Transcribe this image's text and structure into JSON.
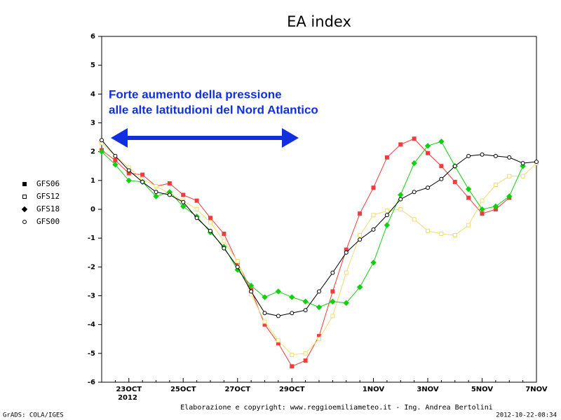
{
  "chart_data": {
    "type": "line",
    "title": "EA index",
    "categories": [
      null,
      null,
      "23OCT",
      null,
      null,
      null,
      "25OCT",
      null,
      null,
      null,
      "27OCT",
      null,
      null,
      null,
      "29OCT",
      null,
      null,
      null,
      null,
      null,
      "1NOV",
      null,
      null,
      null,
      "3NOV",
      null,
      null,
      null,
      "5NOV",
      null,
      null,
      null,
      "7NOV"
    ],
    "year_label": "2012",
    "ylim": [
      -6,
      6
    ],
    "yticks": [
      -6,
      -5,
      -4,
      -3,
      -2,
      -1,
      0,
      1,
      2,
      3,
      4,
      5,
      6
    ],
    "series": [
      {
        "name": "GFS06",
        "color": "#f03c3c",
        "marker": "square",
        "filled": true,
        "values": [
          2.05,
          1.7,
          1.25,
          1.2,
          0.8,
          0.9,
          0.5,
          0.3,
          -0.3,
          -0.85,
          -1.85,
          -2.8,
          -4.0,
          -4.65,
          -5.45,
          -5.25,
          -4.4,
          -2.85,
          -1.4,
          -0.15,
          0.75,
          1.8,
          2.25,
          2.45,
          1.95,
          1.5,
          0.95,
          0.4,
          -0.15,
          0.0,
          0.4,
          null,
          null
        ]
      },
      {
        "name": "GFS12",
        "color": "#f0dc6e",
        "marker": "square",
        "filled": false,
        "values": [
          2.3,
          1.85,
          1.45,
          1.05,
          0.8,
          0.55,
          0.3,
          0.0,
          -0.45,
          -1.1,
          -1.8,
          -2.95,
          -3.9,
          -4.55,
          -5.05,
          -5.0,
          -4.5,
          -3.7,
          -2.2,
          -0.9,
          -0.2,
          -0.05,
          0.0,
          -0.35,
          -0.75,
          -0.85,
          -0.9,
          -0.55,
          0.3,
          0.85,
          1.15,
          1.15,
          1.6
        ]
      },
      {
        "name": "GFS18",
        "color": "#10d010",
        "marker": "diamond",
        "filled": true,
        "values": [
          2.0,
          1.55,
          1.0,
          0.95,
          0.45,
          0.6,
          0.1,
          -0.25,
          -0.8,
          -1.3,
          -2.1,
          -2.65,
          -3.05,
          -2.85,
          -3.05,
          -3.2,
          -3.4,
          -3.2,
          -3.25,
          -2.7,
          -1.85,
          -0.55,
          0.5,
          1.6,
          2.2,
          2.35,
          1.5,
          0.7,
          0.0,
          0.1,
          0.45,
          1.5,
          null
        ]
      },
      {
        "name": "GFS00",
        "color": "#000000",
        "marker": "circle",
        "filled": false,
        "values": [
          2.4,
          1.85,
          1.35,
          0.95,
          0.6,
          0.5,
          0.25,
          -0.3,
          -0.75,
          -1.35,
          -2.0,
          -2.85,
          -3.6,
          -3.7,
          -3.6,
          -3.5,
          -2.85,
          -2.2,
          -1.5,
          -1.05,
          -0.7,
          -0.2,
          0.35,
          0.6,
          0.75,
          1.05,
          1.5,
          1.85,
          1.9,
          1.85,
          1.8,
          1.6,
          1.65
        ]
      }
    ],
    "annotations": [
      "Forte aumento della pressione",
      "alle alte latitudioni del Nord Atlantico"
    ],
    "credit": "Elaborazione e copyright: www.reggioemiliameteo.it - Ing. Andrea Bertolini",
    "software": "GrADS: COLA/IGES",
    "timestamp": "2012-10-22-08:34"
  }
}
